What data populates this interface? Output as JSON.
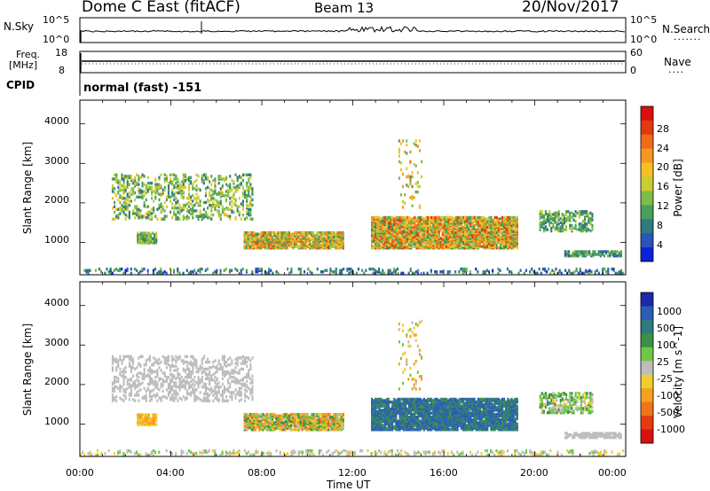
{
  "header": {
    "station": "Dome C East (fitACF)",
    "beam": "Beam 13",
    "date": "20/Nov/2017"
  },
  "sky_panel": {
    "left_label": "N.Sky",
    "left_ticks": [
      "10^5",
      "10^0"
    ],
    "right_label": "N.Search",
    "right_ticks": [
      "10^5",
      "10^0"
    ]
  },
  "freq_panel": {
    "left_label_1": "Freq.",
    "left_label_2": "[MHz]",
    "left_ticks": [
      "18",
      "8"
    ],
    "right_label": "Nave",
    "right_ticks": [
      "60",
      "0"
    ]
  },
  "cpid": {
    "label": "CPID",
    "value": "normal (fast) -151"
  },
  "x_axis": {
    "ticks": [
      "00:00",
      "04:00",
      "08:00",
      "12:00",
      "16:00",
      "20:00",
      "00:00"
    ],
    "label": "Time UT"
  },
  "power_panel": {
    "ylabel": "Slant Range [km]",
    "yticks": [
      "4000",
      "3000",
      "2000",
      "1000"
    ],
    "colorbar_label": "Power [dB]",
    "colorbar_ticks": [
      "28",
      "24",
      "20",
      "16",
      "12",
      "8",
      "4"
    ],
    "colors": [
      "#0a22d8",
      "#2a55b8",
      "#2e7a7e",
      "#4a9f5a",
      "#7dbe48",
      "#c9cc35",
      "#f5c024",
      "#f59820",
      "#f06a18",
      "#e23a10",
      "#d81010"
    ]
  },
  "velocity_panel": {
    "ylabel": "Slant Range [km]",
    "yticks": [
      "4000",
      "3000",
      "2000",
      "1000"
    ],
    "colorbar_label": "Velocity [m s^-1]",
    "colorbar_ticks": [
      "1000",
      "500",
      "100",
      "25",
      "-25",
      "-100",
      "-500",
      "-1000"
    ],
    "colors": [
      "#1a2aa8",
      "#2c5cb8",
      "#2d7a80",
      "#3e8f48",
      "#6ec844",
      "#bdbdbd",
      "#f2cc2a",
      "#f5a020",
      "#f07418",
      "#e63a10",
      "#d81010"
    ]
  },
  "chart_data": [
    {
      "type": "heatmap",
      "title": "Beam 13",
      "xlabel": "Time UT",
      "ylabel": "Slant Range [km]",
      "x_range_hours": [
        0,
        24
      ],
      "ylim": [
        180,
        4600
      ],
      "colorbar": {
        "label": "Power [dB]",
        "range": [
          0,
          31
        ]
      },
      "echo_regions": [
        {
          "t0": 1.4,
          "t1": 7.6,
          "r0": 1550,
          "r1": 2700,
          "density": 0.3,
          "v_lo": 6,
          "v_hi": 18
        },
        {
          "t0": 2.5,
          "t1": 3.4,
          "r0": 950,
          "r1": 1220,
          "density": 0.85,
          "v_lo": 6,
          "v_hi": 18
        },
        {
          "t0": 7.2,
          "t1": 11.6,
          "r0": 820,
          "r1": 1230,
          "density": 0.85,
          "v_lo": 8,
          "v_hi": 26
        },
        {
          "t0": 12.8,
          "t1": 19.2,
          "r0": 820,
          "r1": 1620,
          "density": 0.85,
          "v_lo": 8,
          "v_hi": 28
        },
        {
          "t0": 20.2,
          "t1": 22.5,
          "r0": 1250,
          "r1": 1750,
          "density": 0.5,
          "v_lo": 6,
          "v_hi": 16
        },
        {
          "t0": 21.3,
          "t1": 23.8,
          "r0": 620,
          "r1": 760,
          "density": 0.7,
          "v_lo": 4,
          "v_hi": 14
        },
        {
          "t0": 0.0,
          "t1": 24.0,
          "r0": 180,
          "r1": 320,
          "density": 0.25,
          "v_lo": 2,
          "v_hi": 12
        },
        {
          "t0": 14.0,
          "t1": 15.0,
          "r0": 1850,
          "r1": 3600,
          "density": 0.08,
          "v_lo": 10,
          "v_hi": 24
        }
      ]
    },
    {
      "type": "heatmap",
      "xlabel": "Time UT",
      "ylabel": "Slant Range [km]",
      "x_range_hours": [
        0,
        24
      ],
      "ylim": [
        180,
        4600
      ],
      "colorbar": {
        "label": "Velocity [m s^-1]",
        "range": [
          -1000,
          1000
        ]
      },
      "echo_regions": [
        {
          "t0": 1.4,
          "t1": 7.6,
          "r0": 1550,
          "r1": 2700,
          "density": 0.3,
          "v_lo": -25,
          "v_hi": 25
        },
        {
          "t0": 2.5,
          "t1": 3.4,
          "r0": 950,
          "r1": 1220,
          "density": 0.85,
          "v_lo": -150,
          "v_hi": -50
        },
        {
          "t0": 7.2,
          "t1": 11.6,
          "r0": 820,
          "r1": 1230,
          "density": 0.85,
          "v_lo": -300,
          "v_hi": 200
        },
        {
          "t0": 12.8,
          "t1": 19.2,
          "r0": 820,
          "r1": 1620,
          "density": 0.85,
          "v_lo": 100,
          "v_hi": 800
        },
        {
          "t0": 20.2,
          "t1": 22.5,
          "r0": 1250,
          "r1": 1750,
          "density": 0.5,
          "v_lo": -50,
          "v_hi": 150
        },
        {
          "t0": 21.3,
          "t1": 23.8,
          "r0": 620,
          "r1": 760,
          "density": 0.7,
          "v_lo": -25,
          "v_hi": 25
        },
        {
          "t0": 0.0,
          "t1": 24.0,
          "r0": 180,
          "r1": 320,
          "density": 0.25,
          "v_lo": -50,
          "v_hi": 50
        },
        {
          "t0": 14.0,
          "t1": 15.0,
          "r0": 1850,
          "r1": 3600,
          "density": 0.08,
          "v_lo": -200,
          "v_hi": 100
        }
      ]
    }
  ]
}
